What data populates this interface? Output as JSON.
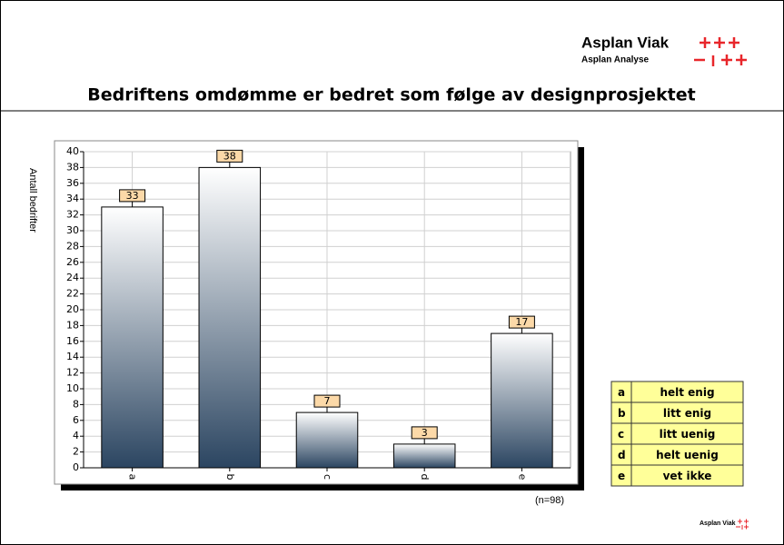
{
  "logo": {
    "name": "Asplan Viak",
    "sub": "Asplan Analyse"
  },
  "chart_data": {
    "type": "bar",
    "title": "Bedriftens omdømme er bedret som følge av designprosjektet",
    "y_label": "Antall bedrifter",
    "note": "(n=98)",
    "categories": [
      "a",
      "b",
      "c",
      "d",
      "e"
    ],
    "values": [
      33,
      38,
      7,
      3,
      17
    ],
    "color": [
      "#ffffff",
      "#2b4561"
    ],
    "label_color": "#fcd9a8",
    "ylim": [
      0,
      40
    ],
    "yticks": [
      0,
      2,
      4,
      6,
      8,
      10,
      12,
      14,
      16,
      18,
      20,
      22,
      24,
      26,
      28,
      30,
      32,
      34,
      36,
      38,
      40
    ],
    "grid": true
  },
  "legend_table": {
    "rows": [
      [
        "a",
        "helt enig"
      ],
      [
        "b",
        "litt enig"
      ],
      [
        "c",
        "litt uenig"
      ],
      [
        "d",
        "helt uenig"
      ],
      [
        "e",
        "vet ikke"
      ]
    ]
  },
  "footer_logo": "Asplan Viak"
}
